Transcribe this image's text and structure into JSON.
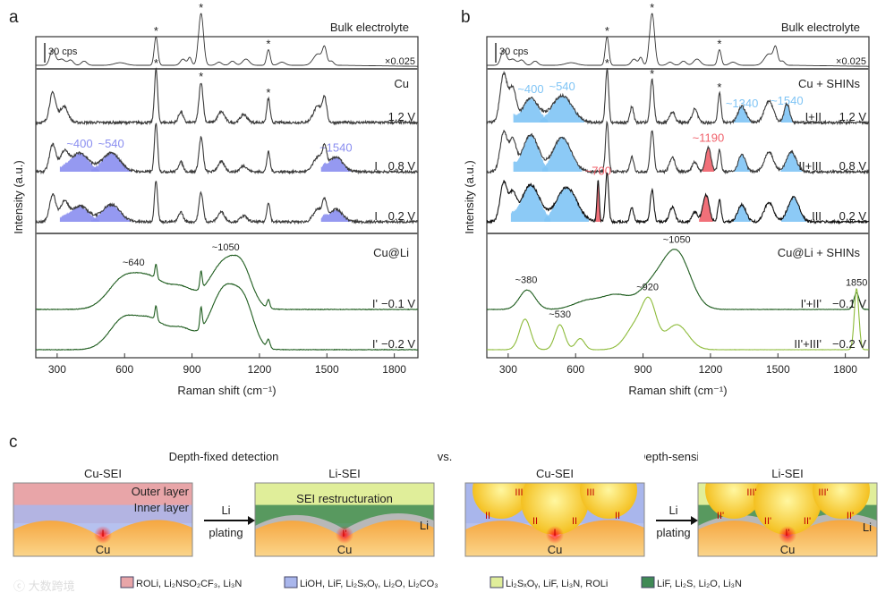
{
  "panel_labels": {
    "a": "a",
    "b": "b",
    "c": "c"
  },
  "chart_data": [
    {
      "type": "line",
      "panel": "a",
      "xlabel": "Raman shift (cm⁻¹)",
      "ylabel": "Intensity (a.u.)",
      "xlim": [
        205,
        1905
      ],
      "xticks": [
        300,
        600,
        900,
        1200,
        1500,
        1800
      ],
      "scale_bar": "30 cps",
      "multiplier": "×0.025",
      "groups": {
        "bulk": "Bulk electrolyte",
        "cu": "Cu",
        "culi": "Cu@Li"
      },
      "series": [
        {
          "name": "bulk",
          "label": "",
          "voltage": "",
          "color": "#333333",
          "noise": 0,
          "star_peaks": [
            740,
            940,
            1240
          ],
          "peaks": [
            [
              280,
              0.3,
              12
            ],
            [
              320,
              0.12,
              15
            ],
            [
              360,
              0.1,
              12
            ],
            [
              420,
              0.08,
              12
            ],
            [
              580,
              0.05,
              25
            ],
            [
              740,
              0.55,
              8
            ],
            [
              860,
              0.12,
              12
            ],
            [
              890,
              0.15,
              8
            ],
            [
              940,
              1.0,
              11
            ],
            [
              1020,
              0.06,
              12
            ],
            [
              1080,
              0.08,
              12
            ],
            [
              1140,
              0.12,
              15
            ],
            [
              1240,
              0.3,
              8
            ],
            [
              1300,
              0.06,
              15
            ],
            [
              1460,
              0.22,
              20
            ],
            [
              1490,
              0.3,
              9
            ],
            [
              1520,
              0.08,
              10
            ]
          ],
          "bands": []
        },
        {
          "name": "cu-1.2",
          "label": "",
          "voltage": "1.2 V",
          "color": "#3a3a3a",
          "noise": 0.05,
          "star_peaks": [
            740,
            940,
            1240
          ],
          "peaks": [
            [
              280,
              0.55,
              14
            ],
            [
              330,
              0.3,
              18
            ],
            [
              740,
              1.0,
              7
            ],
            [
              850,
              0.2,
              10
            ],
            [
              940,
              0.75,
              9
            ],
            [
              1030,
              0.2,
              15
            ],
            [
              1130,
              0.15,
              15
            ],
            [
              1240,
              0.45,
              7
            ],
            [
              1460,
              0.3,
              20
            ],
            [
              1490,
              0.4,
              9
            ]
          ],
          "bands": []
        },
        {
          "name": "cu-0.8",
          "label": "I",
          "voltage": "0.8 V",
          "color": "#3a3a3a",
          "noise": 0.05,
          "star_peaks": [],
          "peaks": [
            [
              280,
              0.55,
              14
            ],
            [
              330,
              0.35,
              18
            ],
            [
              740,
              1.0,
              7
            ],
            [
              850,
              0.2,
              10
            ],
            [
              940,
              0.7,
              9
            ],
            [
              1030,
              0.2,
              15
            ],
            [
              1130,
              0.12,
              15
            ],
            [
              1240,
              0.4,
              7
            ],
            [
              1460,
              0.3,
              20
            ],
            [
              1490,
              0.4,
              9
            ]
          ],
          "bands": [
            {
              "center": 400,
              "amp": 0.38,
              "width": 40,
              "label": "~400"
            },
            {
              "center": 540,
              "amp": 0.38,
              "width": 40,
              "label": "~540"
            },
            {
              "center": 1540,
              "amp": 0.3,
              "width": 30,
              "label": "~1540"
            }
          ]
        },
        {
          "name": "cu-0.2",
          "label": "I",
          "voltage": "0.2 V",
          "color": "#3a3a3a",
          "noise": 0.05,
          "star_peaks": [],
          "peaks": [
            [
              280,
              0.55,
              14
            ],
            [
              330,
              0.35,
              18
            ],
            [
              740,
              0.85,
              7
            ],
            [
              850,
              0.2,
              10
            ],
            [
              940,
              0.6,
              9
            ],
            [
              1030,
              0.2,
              15
            ],
            [
              1130,
              0.12,
              15
            ],
            [
              1240,
              0.4,
              7
            ],
            [
              1460,
              0.25,
              20
            ],
            [
              1490,
              0.35,
              9
            ]
          ],
          "bands": [
            {
              "center": 400,
              "amp": 0.32,
              "width": 40,
              "label": ""
            },
            {
              "center": 540,
              "amp": 0.35,
              "width": 40,
              "label": ""
            },
            {
              "center": 1540,
              "amp": 0.25,
              "width": 30,
              "label": ""
            }
          ]
        },
        {
          "name": "culi-0.1",
          "label": "I'",
          "voltage": "−0.1 V",
          "color": "#1f5d1f",
          "noise": 0.008,
          "star_peaks": [],
          "peak_labels": [
            [
              640,
              "~640"
            ],
            [
              1050,
              "~1050"
            ]
          ],
          "peaks": [
            [
              600,
              0.45,
              70
            ],
            [
              720,
              0.35,
              60
            ],
            [
              740,
              0.2,
              5
            ],
            [
              850,
              0.3,
              60
            ],
            [
              940,
              0.25,
              5
            ],
            [
              1050,
              0.7,
              70
            ],
            [
              1130,
              0.3,
              40
            ],
            [
              1240,
              0.12,
              6
            ]
          ],
          "bands": []
        },
        {
          "name": "culi-0.2",
          "label": "I'",
          "voltage": "−0.2 V",
          "color": "#1f5d1f",
          "noise": 0.008,
          "star_peaks": [],
          "peaks": [
            [
              600,
              0.45,
              65
            ],
            [
              720,
              0.35,
              55
            ],
            [
              740,
              0.2,
              5
            ],
            [
              850,
              0.3,
              60
            ],
            [
              940,
              0.3,
              5
            ],
            [
              1050,
              0.9,
              65
            ],
            [
              1140,
              0.4,
              40
            ],
            [
              1240,
              0.12,
              7
            ]
          ],
          "bands": []
        }
      ]
    },
    {
      "type": "line",
      "panel": "b",
      "xlabel": "Raman shift (cm⁻¹)",
      "ylabel": "Intensity (a.u.)",
      "xlim": [
        205,
        1905
      ],
      "xticks": [
        300,
        600,
        900,
        1200,
        1500,
        1800
      ],
      "scale_bar": "30 cps",
      "multiplier": "×0.025",
      "groups": {
        "bulk": "Bulk electrolyte",
        "cu": "Cu + SHINs",
        "culi": "Cu@Li + SHINs"
      },
      "series": [
        {
          "name": "bulk",
          "label": "",
          "voltage": "",
          "color": "#333333",
          "noise": 0,
          "star_peaks": [
            740,
            940,
            1240
          ],
          "peaks": [
            [
              280,
              0.3,
              12
            ],
            [
              320,
              0.12,
              15
            ],
            [
              360,
              0.1,
              12
            ],
            [
              420,
              0.08,
              12
            ],
            [
              580,
              0.05,
              25
            ],
            [
              740,
              0.55,
              8
            ],
            [
              860,
              0.12,
              12
            ],
            [
              890,
              0.15,
              8
            ],
            [
              940,
              1.0,
              11
            ],
            [
              1020,
              0.06,
              12
            ],
            [
              1080,
              0.08,
              12
            ],
            [
              1140,
              0.12,
              15
            ],
            [
              1240,
              0.3,
              8
            ],
            [
              1300,
              0.06,
              15
            ],
            [
              1460,
              0.22,
              20
            ],
            [
              1490,
              0.3,
              9
            ],
            [
              1520,
              0.08,
              10
            ]
          ],
          "bands": []
        },
        {
          "name": "shin-1.2",
          "label": "I+II",
          "voltage": "1.2 V",
          "color": "#3a3a3a",
          "noise": 0.05,
          "star_peaks": [
            740,
            940,
            1240
          ],
          "peaks": [
            [
              280,
              0.9,
              16
            ],
            [
              320,
              0.6,
              15
            ],
            [
              740,
              1.0,
              7
            ],
            [
              850,
              0.3,
              8
            ],
            [
              940,
              0.8,
              8
            ],
            [
              1030,
              0.2,
              12
            ],
            [
              1130,
              0.25,
              12
            ],
            [
              1240,
              0.55,
              7
            ],
            [
              1460,
              0.4,
              20
            ]
          ],
          "bands": [
            {
              "center": 400,
              "amp": 0.45,
              "width": 35,
              "label": "~400"
            },
            {
              "center": 540,
              "amp": 0.5,
              "width": 45,
              "label": "~540"
            },
            {
              "center": 1340,
              "amp": 0.3,
              "width": 18,
              "label": "~1340"
            },
            {
              "center": 1540,
              "amp": 0.35,
              "width": 12,
              "label": "~1540"
            }
          ]
        },
        {
          "name": "shin-0.8",
          "label": "II+III",
          "voltage": "0.8 V",
          "color": "#3a3a3a",
          "noise": 0.05,
          "star_peaks": [],
          "peaks": [
            [
              280,
              0.8,
              16
            ],
            [
              320,
              0.6,
              15
            ],
            [
              740,
              1.0,
              7
            ],
            [
              850,
              0.3,
              8
            ],
            [
              940,
              0.85,
              8
            ],
            [
              1030,
              0.3,
              12
            ],
            [
              1130,
              0.2,
              12
            ],
            [
              1240,
              0.45,
              7
            ],
            [
              1460,
              0.4,
              20
            ]
          ],
          "bands": [
            {
              "center": 400,
              "amp": 0.75,
              "width": 35,
              "label": ""
            },
            {
              "center": 540,
              "amp": 0.7,
              "width": 40,
              "label": ""
            },
            {
              "center": 1190,
              "amp": 0.5,
              "width": 12,
              "label": "~1190",
              "red": true
            },
            {
              "center": 1340,
              "amp": 0.35,
              "width": 16,
              "label": ""
            },
            {
              "center": 1560,
              "amp": 0.4,
              "width": 22,
              "label": ""
            }
          ]
        },
        {
          "name": "shin-0.2",
          "label": "III",
          "voltage": "0.2 V",
          "color": "#111111",
          "noise": 0.05,
          "star_peaks": [],
          "peaks": [
            [
              280,
              0.8,
              16
            ],
            [
              320,
              0.5,
              15
            ],
            [
              740,
              1.0,
              7
            ],
            [
              850,
              0.3,
              8
            ],
            [
              940,
              0.65,
              8
            ],
            [
              1030,
              0.3,
              12
            ],
            [
              1130,
              0.2,
              12
            ],
            [
              1240,
              0.45,
              7
            ],
            [
              1460,
              0.4,
              20
            ]
          ],
          "bands": [
            {
              "center": 400,
              "amp": 0.75,
              "width": 40,
              "label": ""
            },
            {
              "center": 560,
              "amp": 0.7,
              "width": 45,
              "label": ""
            },
            {
              "center": 700,
              "amp": 0.85,
              "width": 5,
              "label": "~700",
              "red": true
            },
            {
              "center": 1180,
              "amp": 0.55,
              "width": 14,
              "label": "",
              "red": true
            },
            {
              "center": 1340,
              "amp": 0.35,
              "width": 18,
              "label": ""
            },
            {
              "center": 1570,
              "amp": 0.5,
              "width": 25,
              "label": ""
            }
          ]
        },
        {
          "name": "shin-culi-0.1",
          "label": "I'+II'",
          "voltage": "−0.1 V",
          "color": "#1f5d1f",
          "noise": 0.008,
          "star_peaks": [],
          "peak_labels": [
            [
              380,
              "~380"
            ],
            [
              1050,
              "~1050"
            ],
            [
              1850,
              "1850"
            ]
          ],
          "peaks": [
            [
              385,
              0.35,
              35
            ],
            [
              650,
              0.15,
              60
            ],
            [
              780,
              0.25,
              60
            ],
            [
              940,
              0.4,
              60
            ],
            [
              1050,
              1.0,
              60
            ],
            [
              1850,
              0.3,
              12
            ]
          ],
          "bands": []
        },
        {
          "name": "shin-culi-0.2",
          "label": "II'+III'",
          "voltage": "−0.2 V",
          "color": "#8dbb3a",
          "noise": 0.005,
          "star_peaks": [],
          "peak_labels": [
            [
              530,
              "~530"
            ],
            [
              920,
              "~920"
            ]
          ],
          "peaks": [
            [
              375,
              0.55,
              25
            ],
            [
              530,
              0.45,
              22
            ],
            [
              620,
              0.2,
              20
            ],
            [
              880,
              0.5,
              50
            ],
            [
              930,
              0.6,
              30
            ],
            [
              1050,
              0.45,
              50
            ],
            [
              1850,
              1.1,
              10
            ]
          ],
          "bands": []
        }
      ]
    }
  ],
  "panel_c": {
    "left_title": "Depth-fixed detection",
    "vs": "vs.",
    "right_title": "Depth-sensitive detection",
    "boxes": [
      {
        "title": "Cu-SEI",
        "labels": [
          "Outer layer",
          "Inner layer",
          "Cu"
        ],
        "marks": [
          "I"
        ]
      },
      {
        "title": "Li-SEI",
        "labels": [
          "SEI restructuration",
          "Li",
          "Cu"
        ],
        "marks": [
          "I'"
        ]
      },
      {
        "title": "Cu-SEI",
        "labels": [
          "Cu"
        ],
        "marks": [
          "III",
          "III",
          "II",
          "II",
          "II",
          "II",
          "I"
        ]
      },
      {
        "title": "Li-SEI",
        "labels": [
          "Li",
          "Cu"
        ],
        "marks": [
          "III'",
          "III'",
          "II'",
          "II'",
          "II'",
          "II'",
          "I'"
        ]
      }
    ],
    "arrow_label": [
      "Li",
      "plating"
    ],
    "legend": [
      {
        "text": "ROLi, Li₂NSO₂CF₃, Li₃N",
        "color": "#e8a5a8"
      },
      {
        "text": "LiOH, LiF, Li₂SₓOᵧ, Li₂O, Li₂CO₃",
        "color": "#a9b6ec"
      },
      {
        "text": "Li₂SₓOᵧ, LiF, Li₃N, ROLi",
        "color": "#e0ee9a"
      },
      {
        "text": "LiF, Li₂S, Li₂O,  Li₃N",
        "color": "#3f8a55"
      }
    ],
    "watermark": "大数跨境"
  },
  "colors": {
    "band_a": "#8a8ef0",
    "band_b": "#7fc4f5",
    "band_red": "#f0606a"
  }
}
